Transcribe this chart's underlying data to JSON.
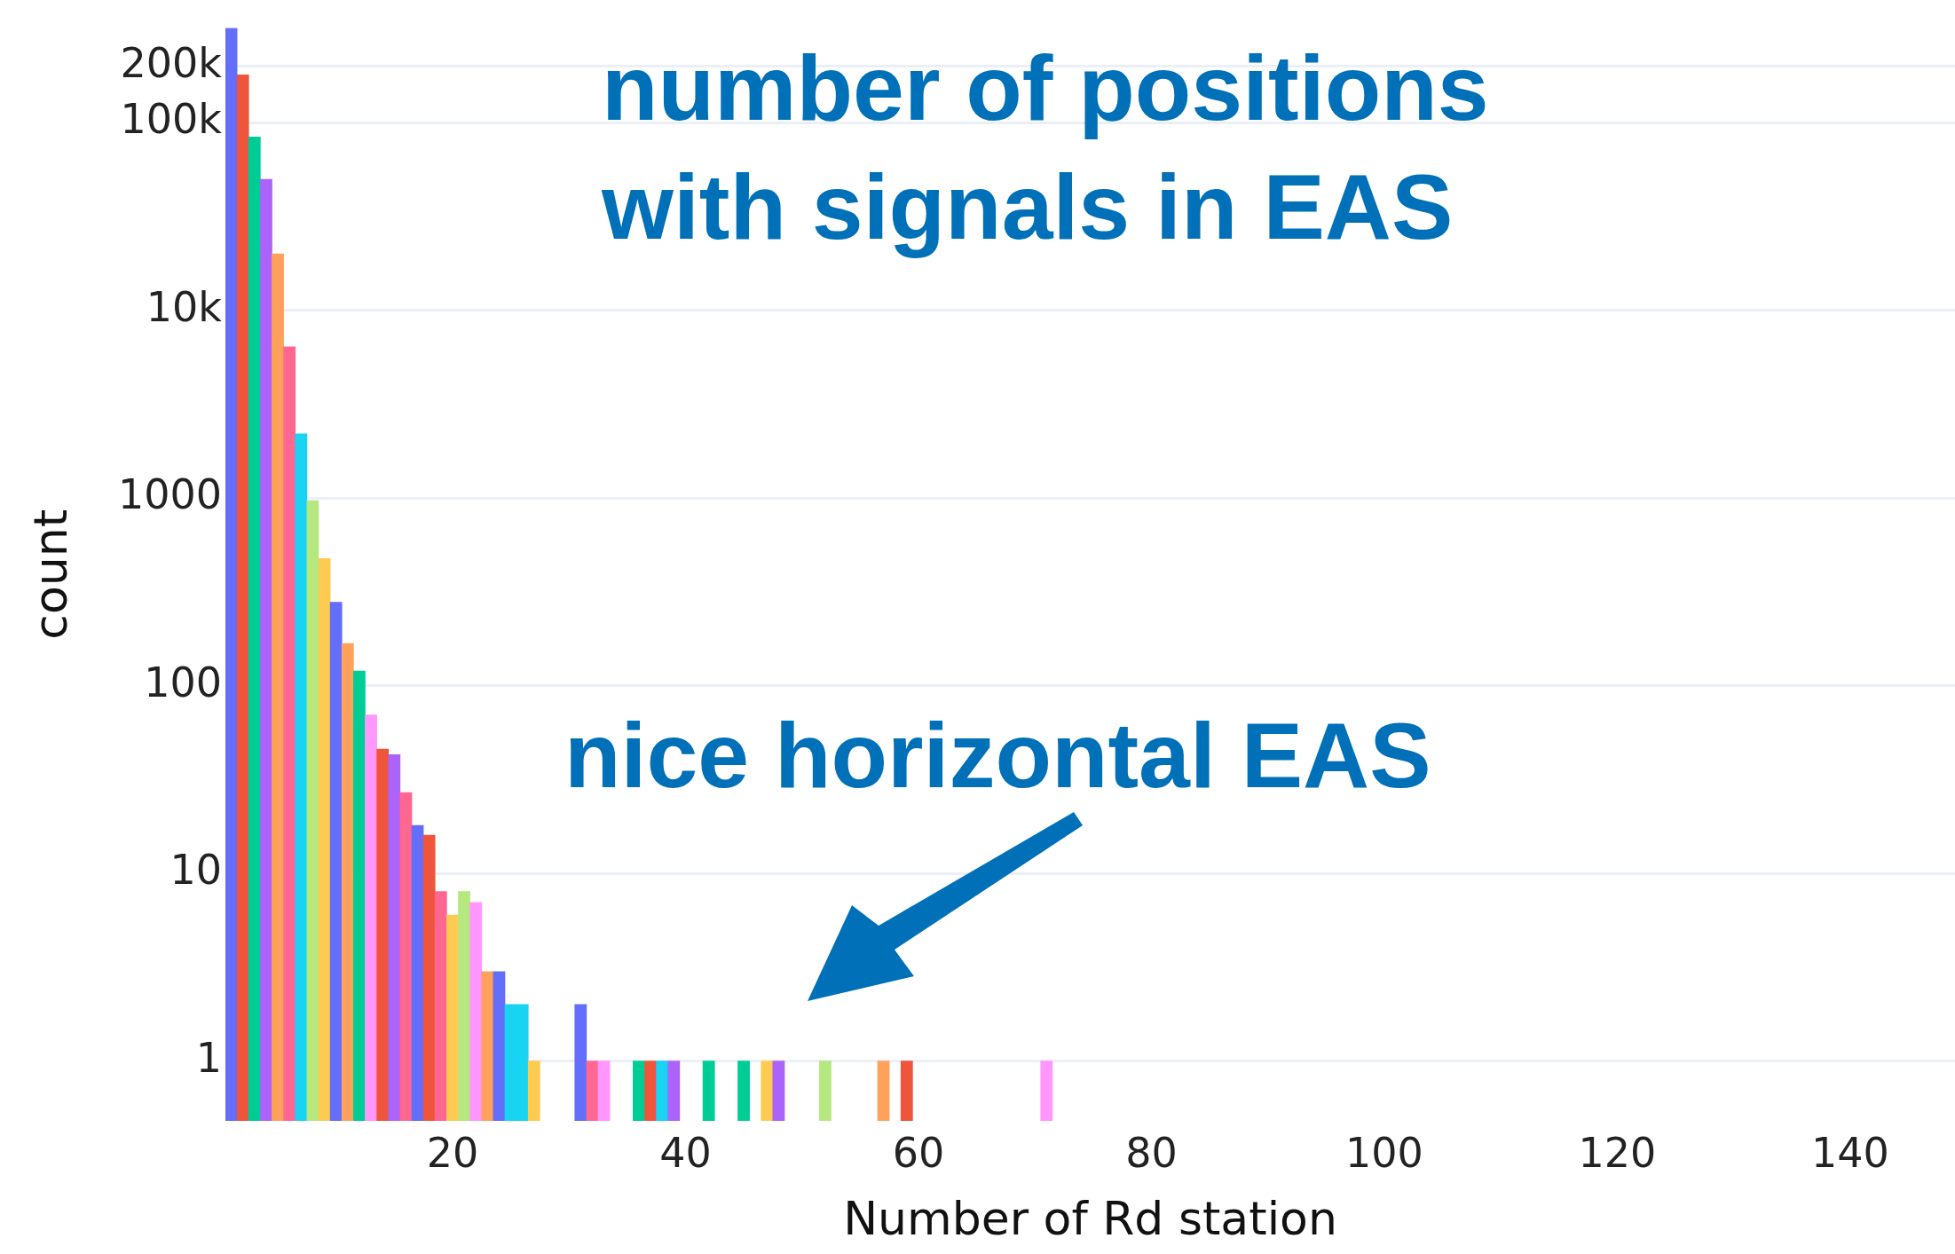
{
  "chart_data": {
    "type": "bar",
    "xlabel": "Number of Rd station",
    "ylabel": "count",
    "x": [
      1,
      2,
      3,
      4,
      5,
      6,
      7,
      8,
      9,
      10,
      11,
      12,
      13,
      14,
      15,
      16,
      17,
      18,
      19,
      20,
      21,
      22,
      23,
      24,
      25,
      26,
      27,
      31,
      32,
      33,
      36,
      37,
      38,
      39,
      42,
      45,
      47,
      48,
      52,
      57,
      59,
      71
    ],
    "values": [
      320000,
      180000,
      84000,
      50000,
      20000,
      6400,
      2200,
      970,
      476,
      279,
      168,
      120,
      70,
      46,
      43,
      27,
      18,
      16,
      8,
      6,
      8,
      7,
      3,
      3,
      2,
      2,
      1,
      2,
      1,
      1,
      1,
      1,
      1,
      1,
      1,
      1,
      1,
      1,
      1,
      1,
      1,
      1
    ],
    "colors": [
      "#636efa",
      "#ef553b",
      "#00cc96",
      "#ab63fa",
      "#ffa15a",
      "#ff6692",
      "#19d3f3",
      "#b6e880",
      "#fecb52",
      "#636efa",
      "#ffa15a",
      "#00cc96",
      "#ff97ff",
      "#ef553b",
      "#ab63fa",
      "#ff6692",
      "#636efa",
      "#ef553b",
      "#ff6692",
      "#fecb52",
      "#b6e880",
      "#ff97ff",
      "#ffa15a",
      "#636efa",
      "#19d3f3",
      "#19d3f3",
      "#fecb52",
      "#636efa",
      "#ff6692",
      "#ff97ff",
      "#00cc96",
      "#ef553b",
      "#19d3f3",
      "#ab63fa",
      "#00cc96",
      "#00cc96",
      "#fecb52",
      "#ab63fa",
      "#b6e880",
      "#ffa15a",
      "#ef553b",
      "#ff97ff"
    ],
    "xlim": [
      0.5,
      149
    ],
    "xticks": [
      20,
      40,
      60,
      80,
      100,
      120,
      140
    ],
    "ylim": [
      0.48,
      320000
    ],
    "yticks": [
      1,
      10,
      100,
      1000,
      {
        "value": 10000,
        "label": "10k"
      },
      {
        "value": 100000,
        "label": "100k"
      },
      {
        "value": 200000,
        "label": "200k"
      }
    ],
    "log": "y",
    "grid": "y",
    "legend": false,
    "annotations": [
      "number of positions\nwith signals in EAS",
      "nice horizontal EAS"
    ]
  }
}
